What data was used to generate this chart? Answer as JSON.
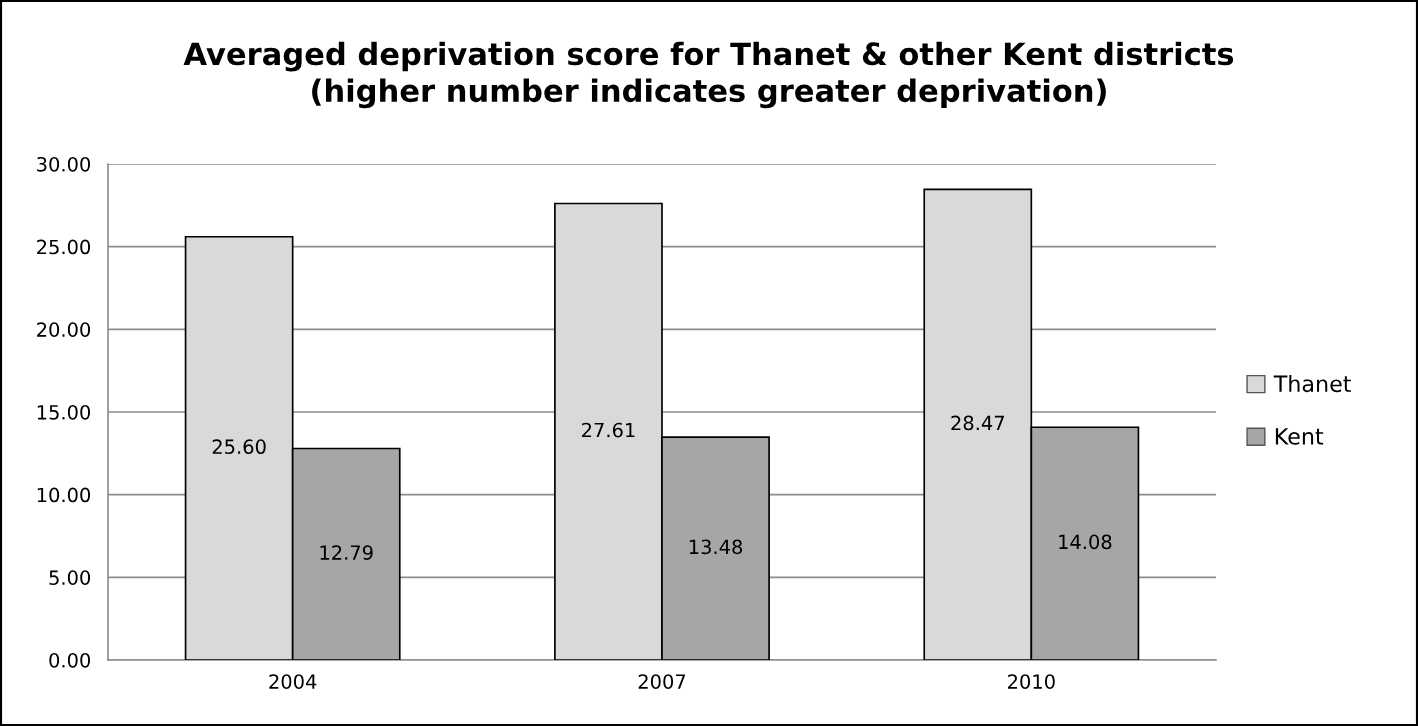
{
  "chart_data": {
    "type": "bar",
    "title": "Averaged deprivation score for Thanet & other Kent districts\n(higher number indicates greater deprivation)",
    "categories": [
      "2004",
      "2007",
      "2010"
    ],
    "series": [
      {
        "name": "Thanet",
        "color": "#d9d9d9",
        "values": [
          25.6,
          27.61,
          28.47
        ],
        "value_labels": [
          "25.60",
          "27.61",
          "28.47"
        ]
      },
      {
        "name": "Kent",
        "color": "#a6a6a6",
        "values": [
          12.79,
          13.48,
          14.08
        ],
        "value_labels": [
          "12.79",
          "13.48",
          "14.08"
        ]
      }
    ],
    "ylim": [
      0,
      30
    ],
    "yticks": [
      {
        "value": 0,
        "label": "0.00"
      },
      {
        "value": 5,
        "label": "5.00"
      },
      {
        "value": 10,
        "label": "10.00"
      },
      {
        "value": 15,
        "label": "15.00"
      },
      {
        "value": 20,
        "label": "20.00"
      },
      {
        "value": 25,
        "label": "25.00"
      },
      {
        "value": 30,
        "label": "30.00"
      }
    ],
    "grid": "y",
    "legend": "right"
  }
}
